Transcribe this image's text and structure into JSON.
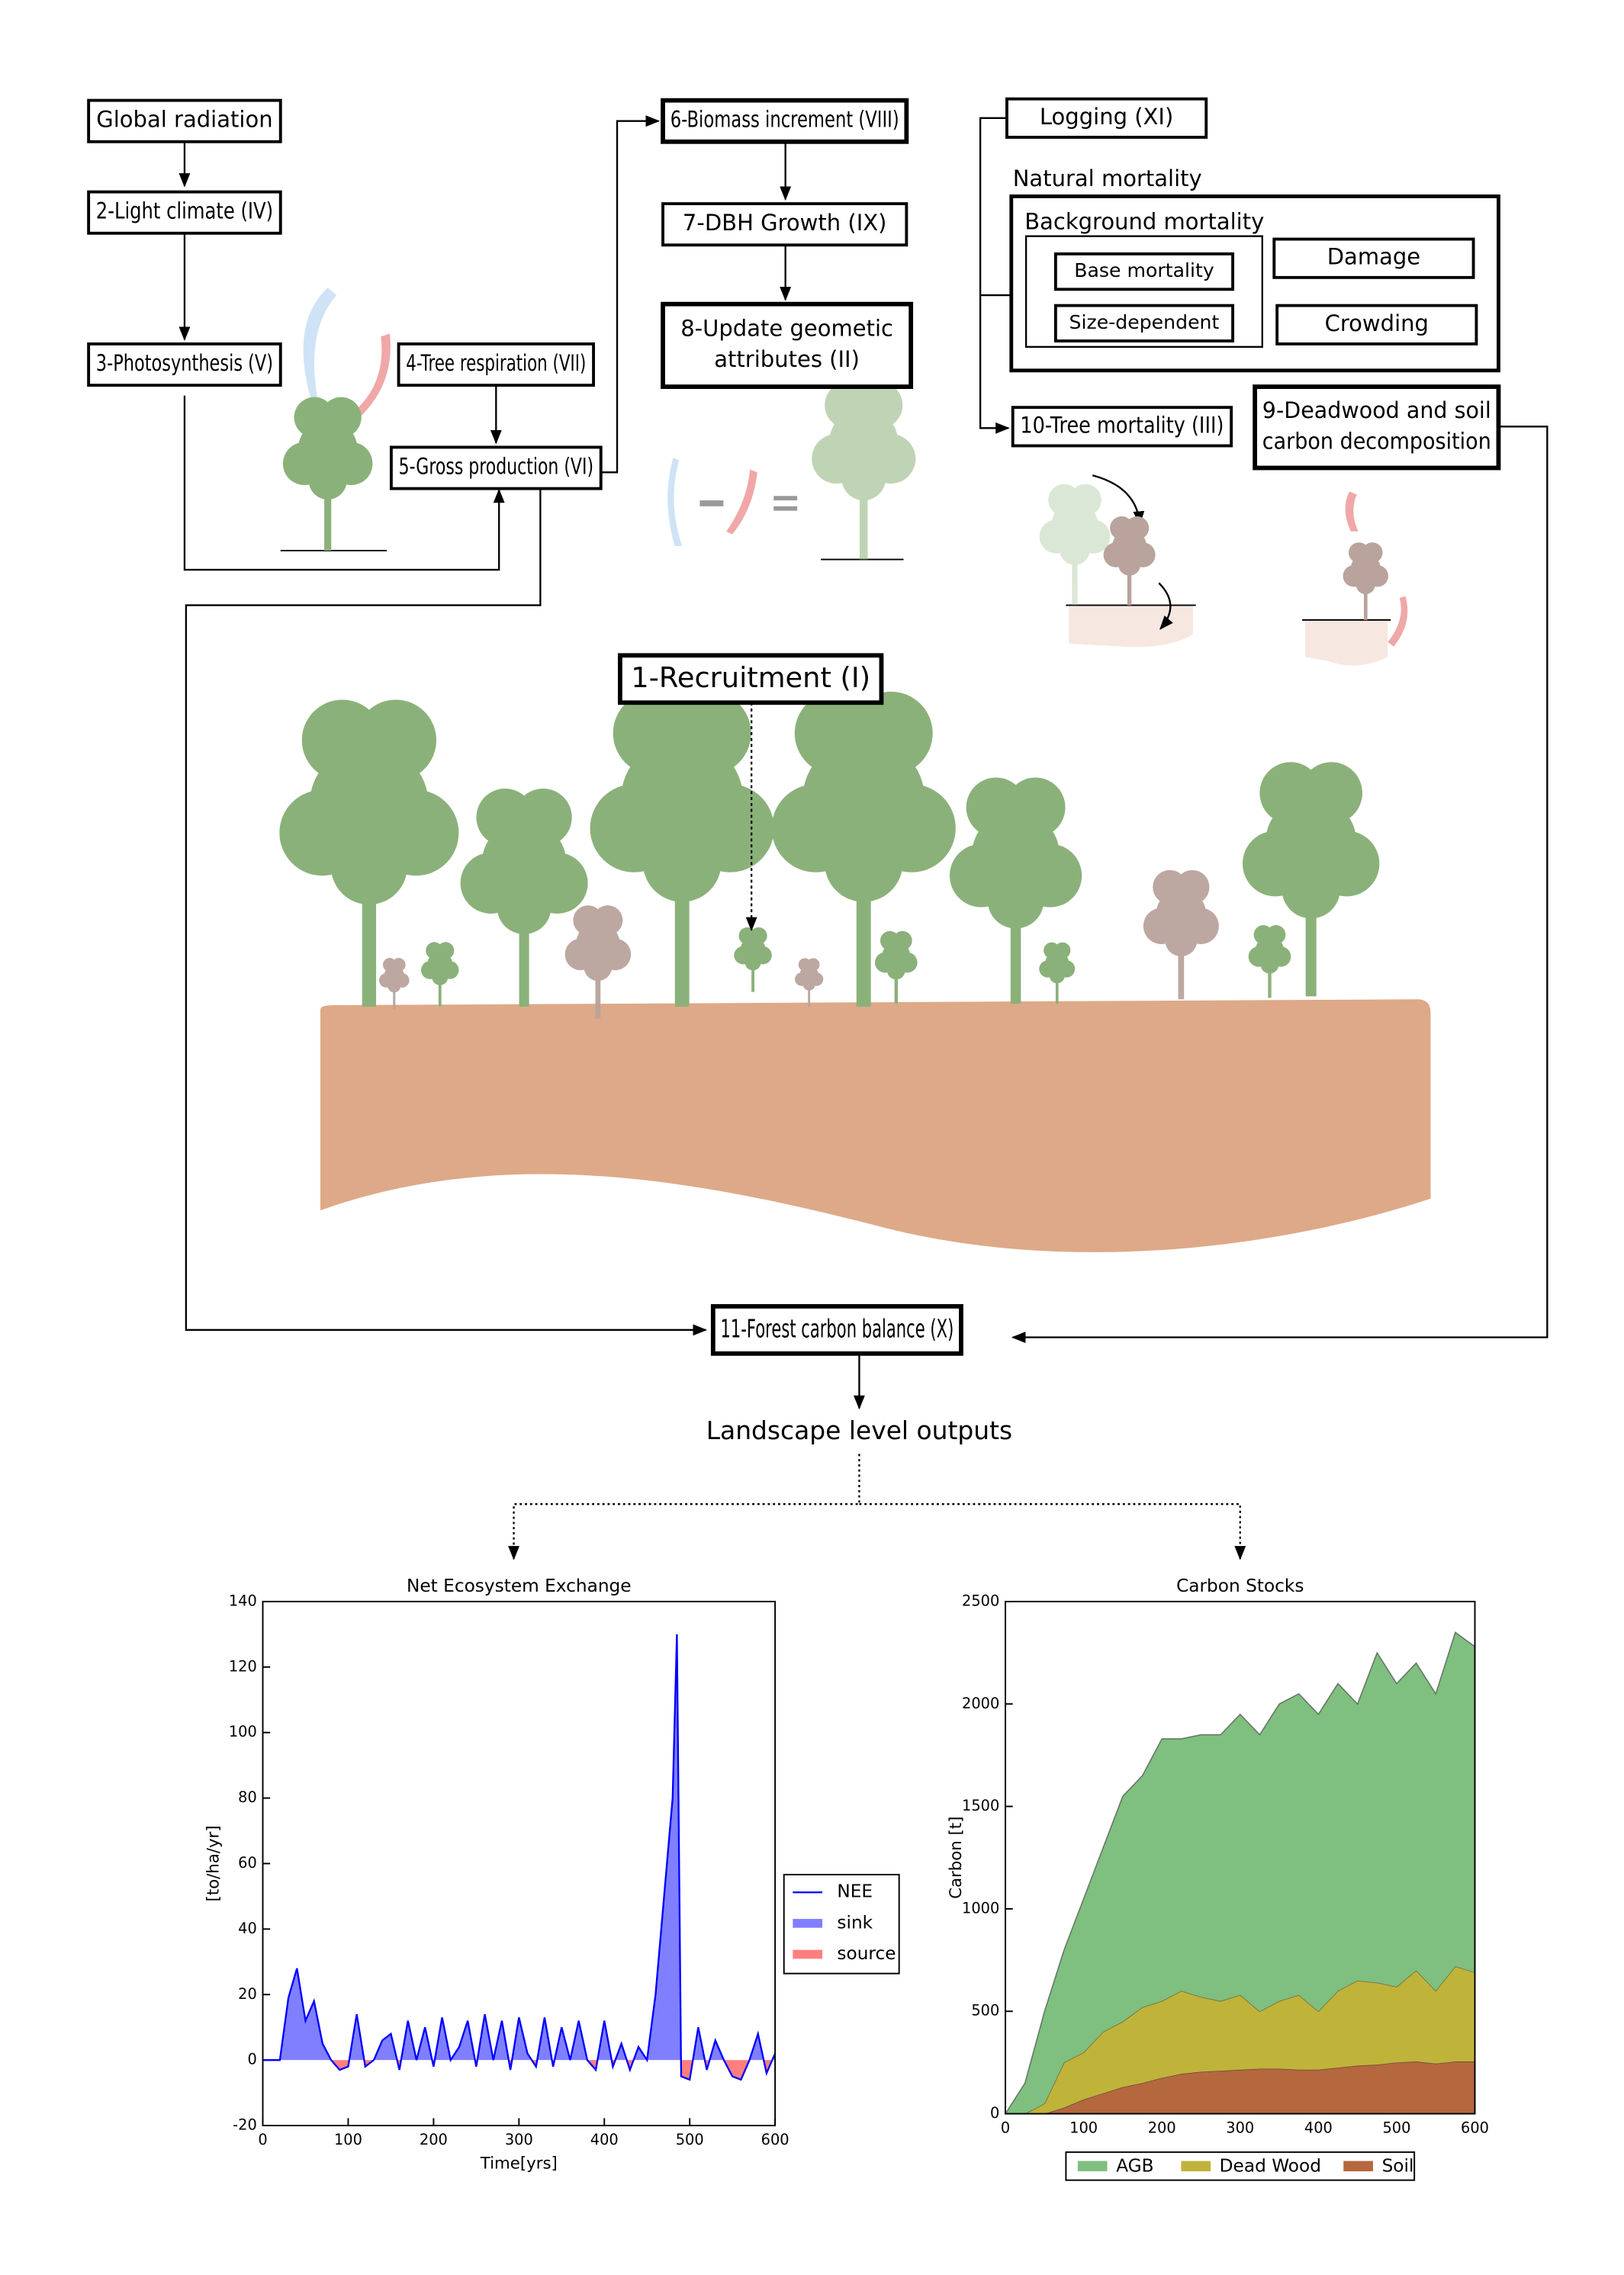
{
  "diagram": {
    "nodes": [
      {
        "label": "Global radiation"
      },
      {
        "label": "2-Light climate (IV)"
      },
      {
        "label": "3-Photosynthesis (V)"
      },
      {
        "label": "4-Tree respiration (VII)"
      },
      {
        "label": "5-Gross production (VI)"
      },
      {
        "label": "6-Biomass increment (VIII)"
      },
      {
        "label": "7-DBH Growth (IX)"
      },
      {
        "lines": [
          "8-Update geometic",
          "attributes (II)"
        ]
      },
      {
        "label": "Logging (XI)"
      },
      {
        "label": "Natural mortality"
      },
      {
        "label": "Background mortality"
      },
      {
        "label": "Base mortality"
      },
      {
        "label": "Size-dependent"
      },
      {
        "label": "Damage"
      },
      {
        "label": "Crowding"
      },
      {
        "label": "10-Tree mortality (III)"
      },
      {
        "lines": [
          "9-Deadwood and soil",
          "carbon decomposition"
        ]
      },
      {
        "label": "1-Recruitment (I)"
      },
      {
        "label": "11-Forest carbon balance (X)"
      }
    ],
    "outputs_label": "Landscape level outputs"
  },
  "chart_data": [
    {
      "type": "line",
      "title": "Net Ecosystem Exchange",
      "xlabel": "Time[yrs]",
      "ylabel": "[to/ha/yr]",
      "x": [
        0,
        10,
        20,
        30,
        40,
        50,
        60,
        70,
        80,
        90,
        100,
        110,
        120,
        130,
        140,
        150,
        160,
        170,
        180,
        190,
        200,
        210,
        220,
        230,
        240,
        250,
        260,
        270,
        280,
        290,
        300,
        310,
        320,
        330,
        340,
        350,
        360,
        370,
        380,
        390,
        400,
        410,
        420,
        430,
        440,
        450,
        460,
        470,
        480,
        485,
        490,
        500,
        510,
        520,
        530,
        540,
        550,
        560,
        570,
        580,
        590,
        600
      ],
      "series": [
        {
          "name": "NEE",
          "color": "#0000ff",
          "values": [
            0,
            0,
            0,
            19,
            28,
            12,
            18,
            5,
            0,
            -3,
            -2,
            14,
            -2,
            0,
            6,
            8,
            -3,
            12,
            0,
            10,
            -2,
            13,
            0,
            4,
            12,
            -2,
            14,
            0,
            12,
            -3,
            13,
            2,
            -2,
            13,
            -2,
            10,
            0,
            12,
            0,
            -3,
            12,
            -2,
            5,
            -3,
            4,
            0,
            20,
            50,
            80,
            130,
            -5,
            -6,
            10,
            -3,
            6,
            0,
            -5,
            -6,
            0,
            8,
            -4,
            2
          ]
        }
      ],
      "fills": [
        {
          "name": "sink",
          "color": "#0000ff"
        },
        {
          "name": "source",
          "color": "#ff0000"
        }
      ],
      "xlim": [
        0,
        600
      ],
      "ylim": [
        -20,
        140
      ],
      "xticks": [
        0,
        100,
        200,
        300,
        400,
        500,
        600
      ],
      "yticks": [
        -20,
        0,
        20,
        40,
        60,
        80,
        100,
        120,
        140
      ],
      "legend": "right"
    },
    {
      "type": "stacked_area",
      "title": "Carbon Stocks",
      "ylabel": "Carbon [t]",
      "x": [
        0,
        25,
        50,
        75,
        100,
        125,
        150,
        175,
        200,
        225,
        250,
        275,
        300,
        325,
        350,
        375,
        400,
        425,
        450,
        475,
        500,
        525,
        550,
        575,
        600
      ],
      "series": [
        {
          "name": "AGB",
          "color": "#7fbf7f",
          "values": [
            0,
            150,
            450,
            550,
            750,
            900,
            1100,
            1130,
            1280,
            1230,
            1280,
            1300,
            1370,
            1350,
            1450,
            1470,
            1450,
            1500,
            1350,
            1610,
            1480,
            1500,
            1450,
            1630,
            1590
          ]
        },
        {
          "name": "Dead Wood",
          "color": "#c0b33a",
          "values": [
            0,
            0,
            50,
            220,
            230,
            300,
            320,
            370,
            375,
            405,
            365,
            340,
            365,
            280,
            330,
            365,
            285,
            375,
            415,
            400,
            370,
            445,
            355,
            465,
            435
          ]
        },
        {
          "name": "Soil",
          "color": "#b5673e",
          "values": [
            0,
            0,
            0,
            30,
            70,
            100,
            130,
            150,
            175,
            195,
            205,
            210,
            215,
            220,
            220,
            215,
            215,
            225,
            235,
            240,
            250,
            255,
            245,
            255,
            255
          ]
        }
      ],
      "xlim": [
        0,
        600
      ],
      "ylim": [
        0,
        2500
      ],
      "xticks": [
        0,
        100,
        200,
        300,
        400,
        500,
        600
      ],
      "yticks": [
        0,
        500,
        1000,
        1500,
        2000,
        2500
      ],
      "legend": "bottom"
    }
  ]
}
